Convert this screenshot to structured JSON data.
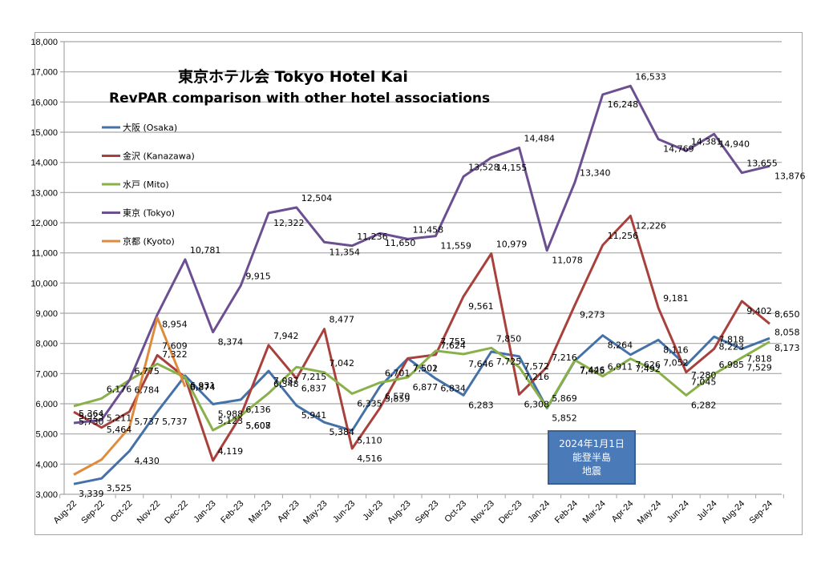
{
  "chart_data": {
    "type": "line",
    "title": "東京ホテル会  Tokyo Hotel Kai",
    "subtitle": "RevPAR comparison with other hotel associations",
    "xlabel": "",
    "ylabel": "",
    "ylim": [
      3000,
      18000
    ],
    "ytick_step": 1000,
    "y_ticks": [
      "3,000",
      "4,000",
      "5,000",
      "6,000",
      "7,000",
      "8,000",
      "9,000",
      "10,000",
      "11,000",
      "12,000",
      "13,000",
      "14,000",
      "15,000",
      "16,000",
      "17,000",
      "18,000"
    ],
    "grid": true,
    "legend_position": "upper-left inside plot",
    "categories": [
      "Aug-22",
      "Sep-22",
      "Oct-22",
      "Nov-22",
      "Dec-22",
      "Jan-23",
      "Feb-23",
      "Mar-23",
      "Apr-23",
      "May-23",
      "Jun-23",
      "Jul-23",
      "Aug-23",
      "Sep-23",
      "Oct-23",
      "Nov-23",
      "Dec-23",
      "Jan-24",
      "Feb-24",
      "Mar-24",
      "Apr-24",
      "May-24",
      "Jun-24",
      "Jul-24",
      "Aug-24",
      "Sep-24"
    ],
    "series": [
      {
        "name": "大阪 (Osaka)",
        "color": "#4472a8",
        "values": [
          3339,
          3525,
          4430,
          5737,
          6931,
          5988,
          6136,
          7087,
          5941,
          5384,
          5110,
          6570,
          7501,
          6834,
          6283,
          7725,
          7572,
          5852,
          7425,
          8264,
          7626,
          8116,
          7280,
          8223,
          7818,
          8173
        ]
      },
      {
        "name": "金沢 (Kanazawa)",
        "color": "#a8403c",
        "values": [
          5730,
          5211,
          5737,
          7609,
          6874,
          4119,
          5608,
          7942,
          6837,
          8477,
          4516,
          5859,
          7502,
          7624,
          9561,
          10979,
          6308,
          7216,
          9273,
          11256,
          12226,
          9181,
          7045,
          7818,
          9402,
          8650
        ]
      },
      {
        "name": "水戸 (Mito)",
        "color": "#8ab04a",
        "values": [
          5923,
          6176,
          6784,
          7322,
          6874,
          5123,
          5607,
          6348,
          7215,
          7042,
          6335,
          6701,
          6877,
          7755,
          7646,
          7850,
          7216,
          5869,
          7446,
          6911,
          7492,
          7052,
          6282,
          6985,
          7529,
          8058
        ]
      },
      {
        "name": "東京 (Tokyo)",
        "color": "#6b4f91",
        "values": [
          5364,
          5464,
          6775,
          8954,
          10781,
          8374,
          9915,
          12322,
          12504,
          11354,
          11236,
          11650,
          11458,
          11559,
          13528,
          14155,
          14484,
          11078,
          13340,
          16248,
          16533,
          14769,
          14381,
          14940,
          13655,
          13876
        ]
      },
      {
        "name": "京都 (Kyoto)",
        "color": "#e08a3c",
        "values": [
          3650,
          4150,
          5211,
          8850,
          6564,
          null,
          null,
          null,
          null,
          null,
          null,
          null,
          null,
          null,
          null,
          null,
          null,
          null,
          null,
          null,
          null,
          null,
          null,
          null,
          null,
          null
        ]
      }
    ],
    "annotation": {
      "lines": [
        "2024年1月1日",
        "能登半島",
        "地震"
      ],
      "color": "#4a7ab8"
    }
  }
}
